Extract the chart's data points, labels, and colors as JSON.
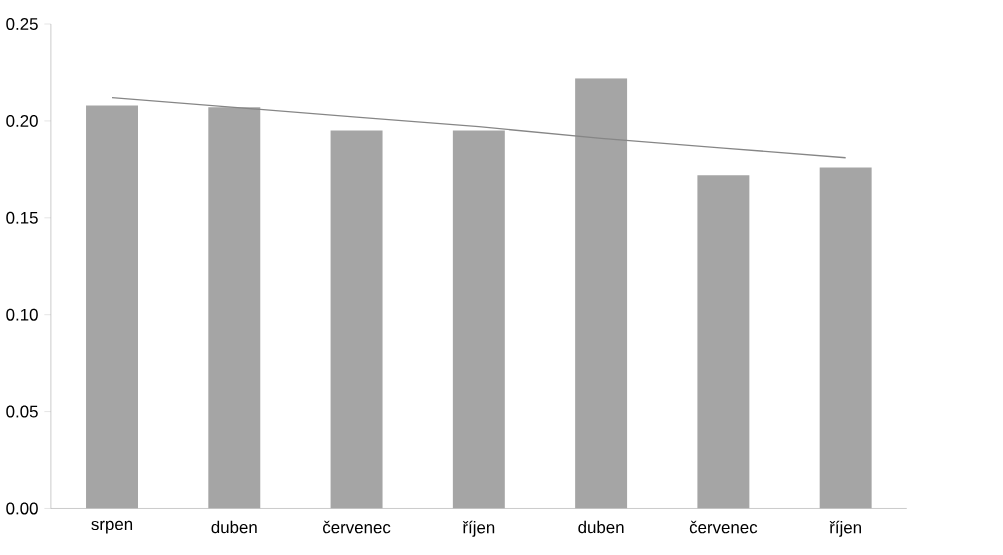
{
  "chart_data": {
    "type": "bar",
    "categories": [
      "srpen",
      "duben",
      "červenec",
      "říjen",
      "duben",
      "červenec",
      "říjen"
    ],
    "series": [
      {
        "color": "#a5a5a5",
        "values": [
          0.208,
          0.207,
          0.195,
          0.195,
          0.222,
          0.172,
          0.176
        ]
      },
      {
        "type": "line",
        "color": "#868686",
        "values": [
          0.212,
          0.207,
          0.202,
          0.197,
          0.191,
          0.186,
          0.181
        ]
      }
    ],
    "ylim": [
      0,
      0.25
    ],
    "yticks": [
      {
        "value": 0,
        "label": "0.00"
      },
      {
        "value": 0.05,
        "label": "0.05"
      },
      {
        "value": 0.1,
        "label": "0.10"
      },
      {
        "value": 0.15,
        "label": "0.15"
      },
      {
        "value": 0.2,
        "label": "0.20"
      },
      {
        "value": 0.25,
        "label": "0.25"
      }
    ]
  }
}
